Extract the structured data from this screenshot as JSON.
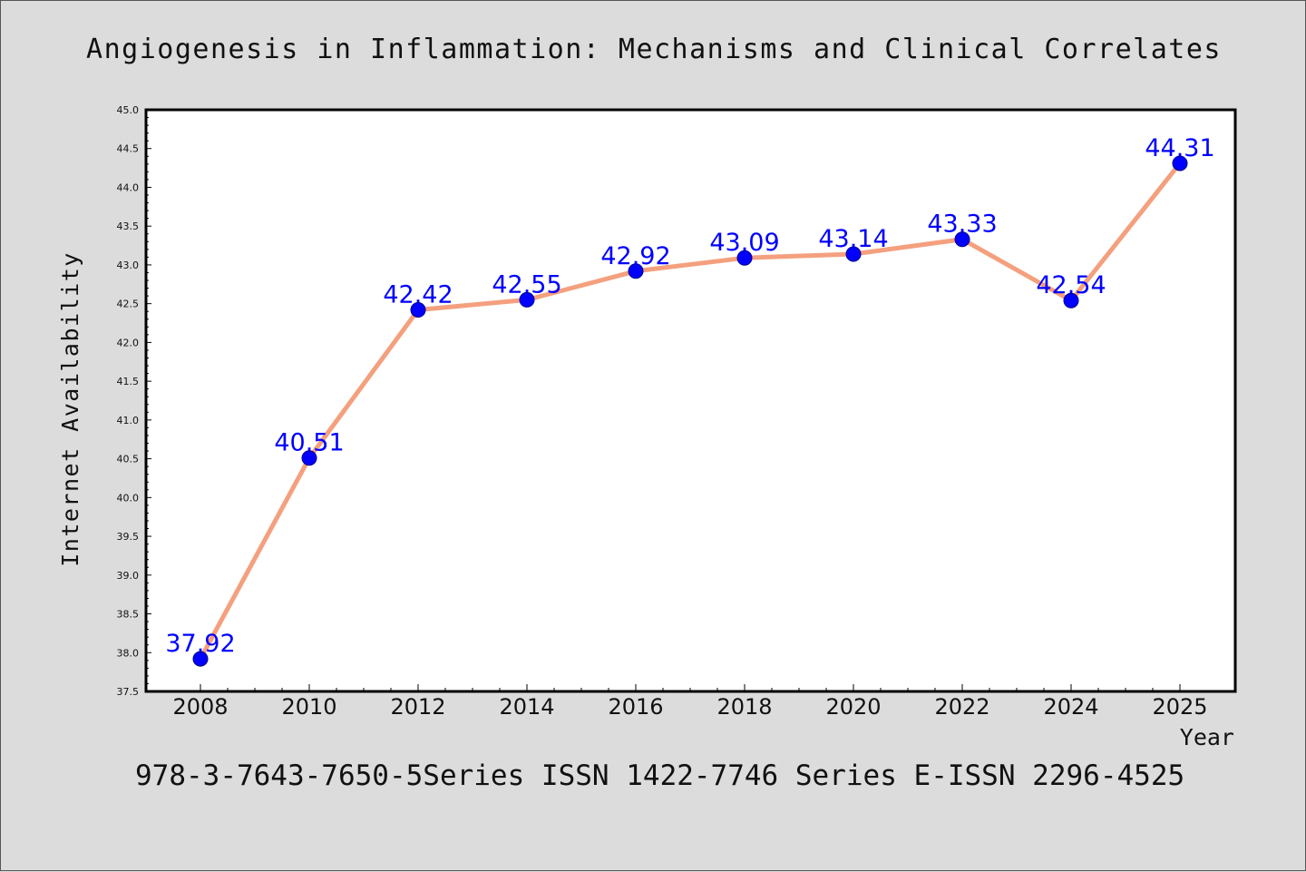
{
  "chart_data": {
    "type": "line",
    "title": "Angiogenesis in Inflammation: Mechanisms and Clinical Correlates",
    "xlabel": "Year",
    "ylabel": "Internet Availability",
    "x": [
      "2008",
      "2010",
      "2012",
      "2014",
      "2016",
      "2018",
      "2020",
      "2022",
      "2024",
      "2025"
    ],
    "series": [
      {
        "values": [
          37.92,
          40.51,
          42.42,
          42.55,
          42.92,
          43.09,
          43.14,
          43.33,
          42.54,
          44.31
        ],
        "labels": [
          "37.92",
          "40.51",
          "42.42",
          "42.55",
          "42.92",
          "43.09",
          "43.14",
          "43.33",
          "42.54",
          "44.31"
        ]
      }
    ],
    "ylim": [
      37.5,
      45.0
    ],
    "yticks": [
      "37.5",
      "38.0",
      "38.5",
      "39.0",
      "39.5",
      "40.0",
      "40.5",
      "41.0",
      "41.5",
      "42.0",
      "42.5",
      "43.0",
      "43.5",
      "44.0",
      "44.5",
      "45.0"
    ],
    "grid": false,
    "footer": "978-3-7643-7650-5Series ISSN 1422-7746 Series E-ISSN 2296-4525",
    "colors": {
      "line": "#f4a07e",
      "marker": "#0000ff",
      "data_label": "#0000ff",
      "background": "#dcdcdc",
      "plot_background": "#ffffff"
    }
  }
}
